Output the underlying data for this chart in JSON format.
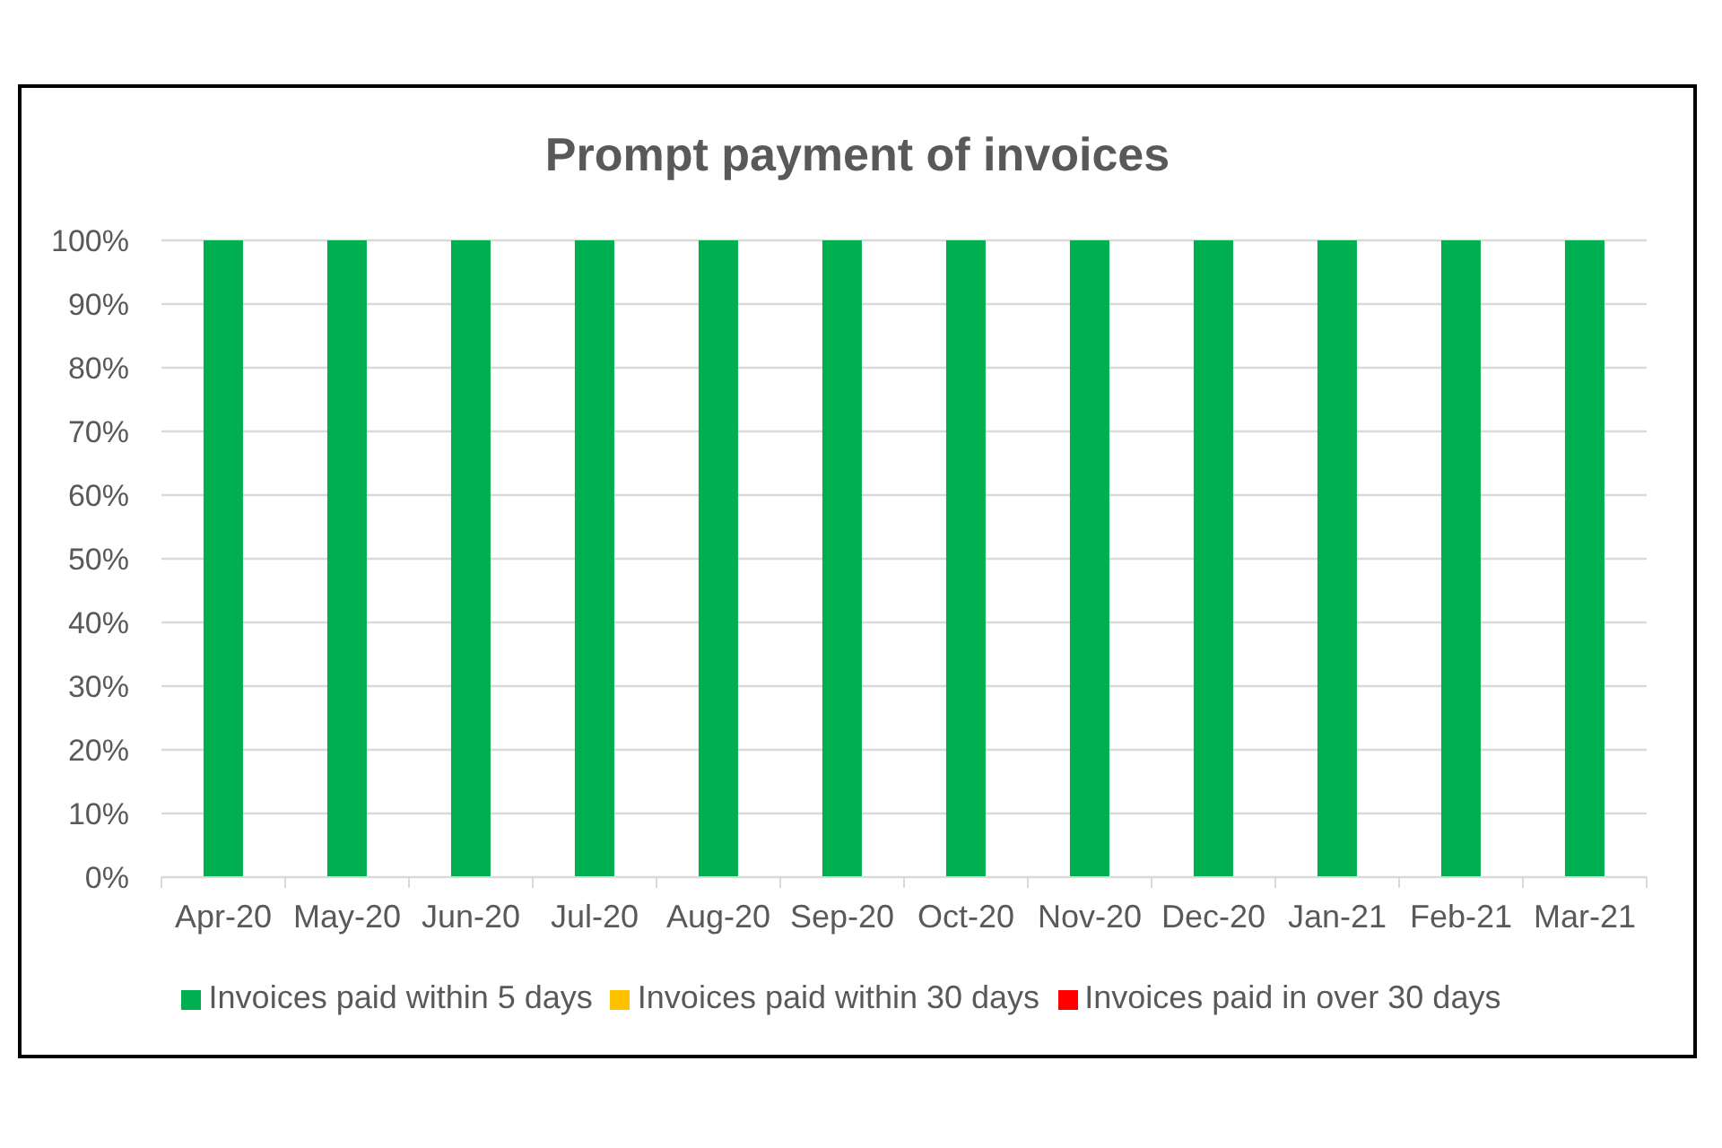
{
  "chart_data": {
    "type": "bar",
    "title": "Prompt payment of invoices",
    "categories": [
      "Apr-20",
      "May-20",
      "Jun-20",
      "Jul-20",
      "Aug-20",
      "Sep-20",
      "Oct-20",
      "Nov-20",
      "Dec-20",
      "Jan-21",
      "Feb-21",
      "Mar-21"
    ],
    "series": [
      {
        "name": "Invoices paid within 5 days",
        "color": "#00b050",
        "values": [
          100,
          100,
          100,
          100,
          100,
          100,
          100,
          100,
          100,
          100,
          100,
          100
        ]
      },
      {
        "name": "Invoices paid within 30 days",
        "color": "#ffc000",
        "values": [
          0,
          0,
          0,
          0,
          0,
          0,
          0,
          0,
          0,
          0,
          0,
          0
        ]
      },
      {
        "name": "Invoices paid in over 30 days",
        "color": "#ff0000",
        "values": [
          0,
          0,
          0,
          0,
          0,
          0,
          0,
          0,
          0,
          0,
          0,
          0
        ]
      }
    ],
    "stacked": true,
    "ylim": [
      0,
      100
    ],
    "yticks": [
      {
        "value": 0,
        "label": "0%"
      },
      {
        "value": 10,
        "label": "10%"
      },
      {
        "value": 20,
        "label": "20%"
      },
      {
        "value": 30,
        "label": "30%"
      },
      {
        "value": 40,
        "label": "40%"
      },
      {
        "value": 50,
        "label": "50%"
      },
      {
        "value": 60,
        "label": "60%"
      },
      {
        "value": 70,
        "label": "70%"
      },
      {
        "value": 80,
        "label": "80%"
      },
      {
        "value": 90,
        "label": "90%"
      },
      {
        "value": 100,
        "label": "100%"
      }
    ],
    "grid": "y",
    "legend": "bottom"
  }
}
